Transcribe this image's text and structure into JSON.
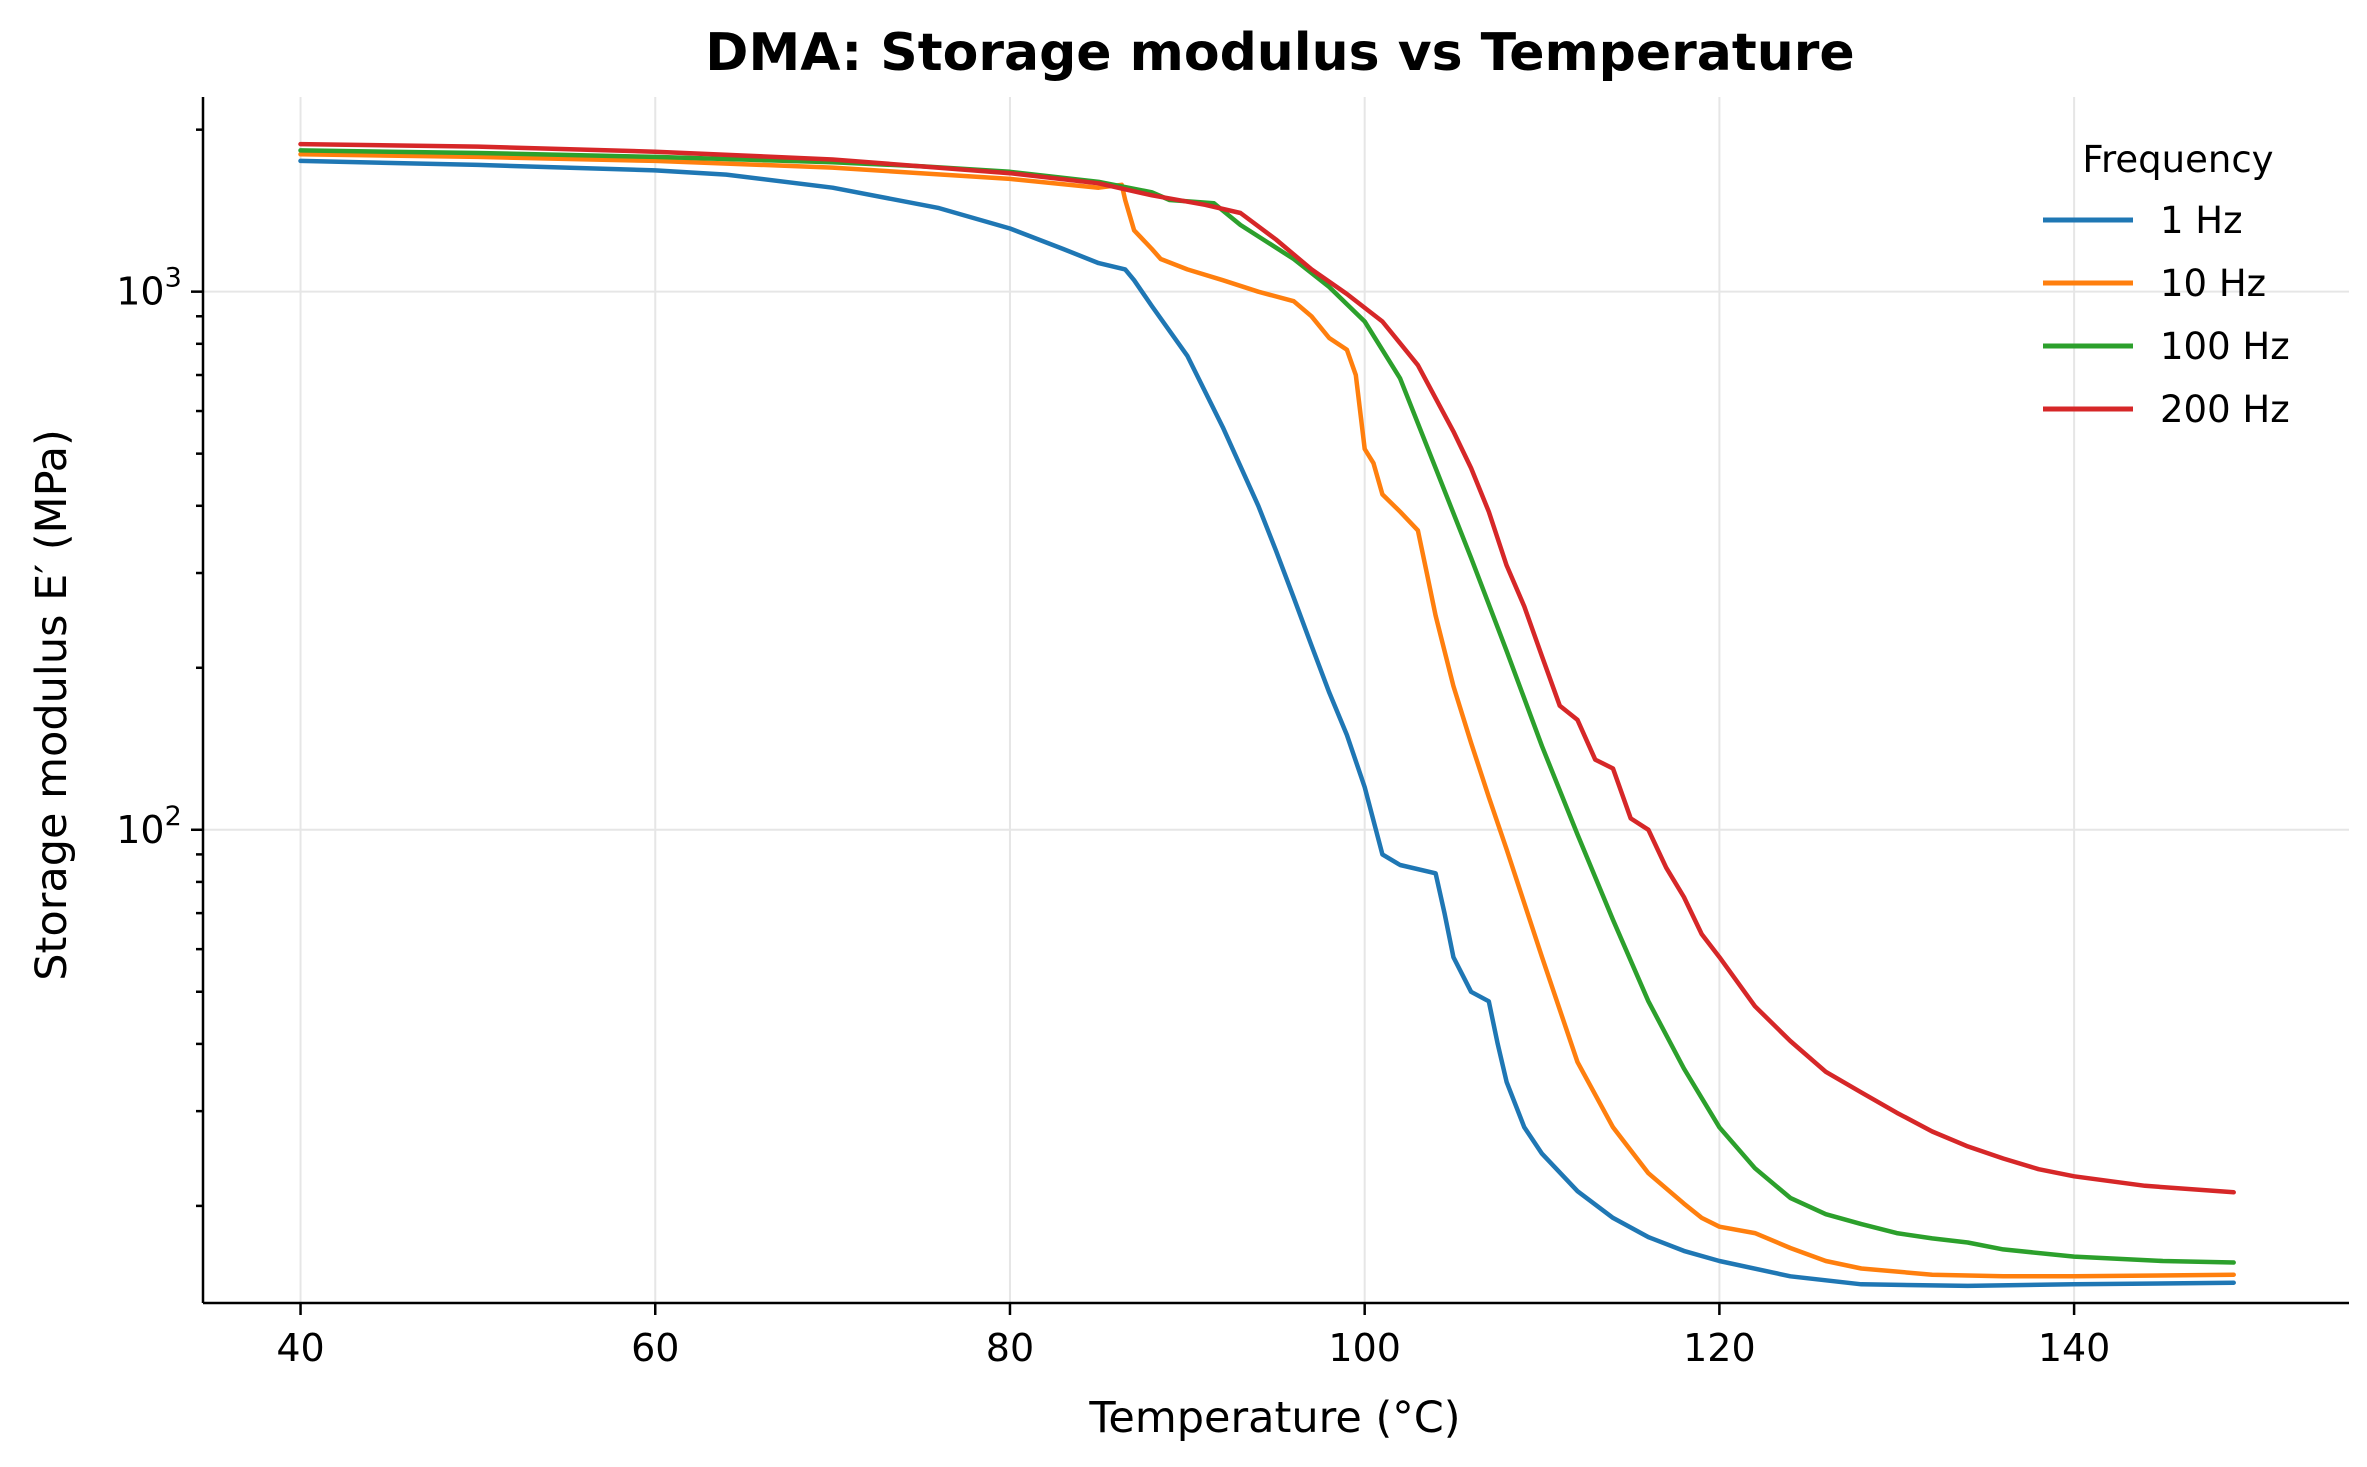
{
  "chart_data": {
    "type": "line",
    "title": "DMA: Storage modulus vs Temperature",
    "xlabel": "Temperature (°C)",
    "ylabel": "Storage modulus E′ (MPa)",
    "xlim": [
      34.5,
      155.5
    ],
    "ylim": [
      13.2,
      2300
    ],
    "yscale": "log",
    "grid": true,
    "x_ticks": [
      {
        "value": 40,
        "label": "40"
      },
      {
        "value": 60,
        "label": "60"
      },
      {
        "value": 80,
        "label": "80"
      },
      {
        "value": 100,
        "label": "100"
      },
      {
        "value": 120,
        "label": "120"
      },
      {
        "value": 140,
        "label": "140"
      }
    ],
    "y_ticks": [
      {
        "value": 100,
        "base": "10",
        "exp": "2"
      },
      {
        "value": 1000,
        "base": "10",
        "exp": "3"
      }
    ],
    "legend": {
      "title": "Frequency",
      "position": "top-right"
    },
    "series": [
      {
        "name": "1 Hz",
        "color": "#1f77b4",
        "x": [
          40,
          50,
          60,
          64,
          70,
          76,
          80,
          83,
          85,
          86.5,
          87,
          88,
          90,
          92,
          94,
          95,
          96,
          97,
          98,
          99,
          100,
          101,
          102,
          104,
          104.5,
          105,
          106,
          107,
          107.5,
          108,
          109,
          110,
          112,
          114,
          116,
          118,
          120,
          124,
          128,
          134,
          140,
          149
        ],
        "y": [
          1750,
          1720,
          1680,
          1650,
          1560,
          1430,
          1310,
          1200,
          1130,
          1100,
          1050,
          940,
          760,
          560,
          400,
          330,
          270,
          220,
          180,
          150,
          120,
          90,
          86,
          83,
          70,
          58,
          50,
          48,
          40,
          34,
          28,
          25,
          21.3,
          19,
          17.5,
          16.5,
          15.8,
          14.8,
          14.3,
          14.2,
          14.3,
          14.4
        ]
      },
      {
        "name": "10 Hz",
        "color": "#ff7f0e",
        "x": [
          40,
          50,
          60,
          70,
          80,
          85,
          86.3,
          86.5,
          87,
          88,
          88.5,
          90,
          92,
          94,
          96,
          97,
          98,
          99,
          99.5,
          100,
          100.5,
          101,
          102,
          103,
          103.5,
          104,
          105,
          106,
          107,
          108,
          110,
          112,
          114,
          116,
          118,
          119,
          120,
          122,
          124,
          126,
          128,
          132,
          136,
          140,
          149
        ],
        "y": [
          1800,
          1780,
          1750,
          1700,
          1620,
          1560,
          1580,
          1480,
          1300,
          1200,
          1150,
          1100,
          1050,
          1000,
          960,
          900,
          820,
          780,
          700,
          510,
          480,
          420,
          390,
          360,
          300,
          250,
          185,
          145,
          115,
          92,
          58,
          37,
          28,
          23,
          20.2,
          19,
          18.3,
          17.8,
          16.7,
          15.8,
          15.3,
          14.9,
          14.8,
          14.8,
          14.9
        ]
      },
      {
        "name": "100 Hz",
        "color": "#2ca02c",
        "x": [
          40,
          50,
          60,
          70,
          75,
          80,
          85,
          88,
          89,
          91.5,
          93,
          96,
          98,
          100,
          102,
          104,
          106,
          108,
          110,
          112,
          114,
          116,
          118,
          120,
          122,
          124,
          126,
          128,
          130,
          132,
          134,
          136,
          140,
          145,
          149
        ],
        "y": [
          1830,
          1810,
          1780,
          1740,
          1710,
          1670,
          1600,
          1530,
          1480,
          1460,
          1330,
          1150,
          1020,
          880,
          690,
          470,
          320,
          215,
          143,
          98,
          68,
          48,
          36,
          28,
          23.5,
          20.7,
          19.3,
          18.5,
          17.8,
          17.4,
          17.1,
          16.6,
          16.1,
          15.8,
          15.7
        ]
      },
      {
        "name": "200 Hz",
        "color": "#d62728",
        "x": [
          40,
          50,
          60,
          70,
          80,
          85,
          88,
          91,
          93,
          95,
          97,
          99,
          101,
          103,
          105,
          106,
          107,
          108,
          109,
          110,
          111,
          112,
          113,
          114,
          115,
          116,
          117,
          118,
          119,
          120,
          122,
          124,
          126,
          128,
          130,
          132,
          134,
          136,
          138,
          140,
          144,
          149
        ],
        "y": [
          1880,
          1860,
          1820,
          1760,
          1660,
          1590,
          1510,
          1450,
          1400,
          1250,
          1100,
          990,
          880,
          730,
          550,
          470,
          390,
          310,
          260,
          210,
          170,
          160,
          135,
          130,
          105,
          100,
          85,
          75,
          64,
          58,
          47,
          40.5,
          35.5,
          32.5,
          29.8,
          27.5,
          25.8,
          24.5,
          23.4,
          22.7,
          21.8,
          21.2
        ]
      }
    ]
  }
}
